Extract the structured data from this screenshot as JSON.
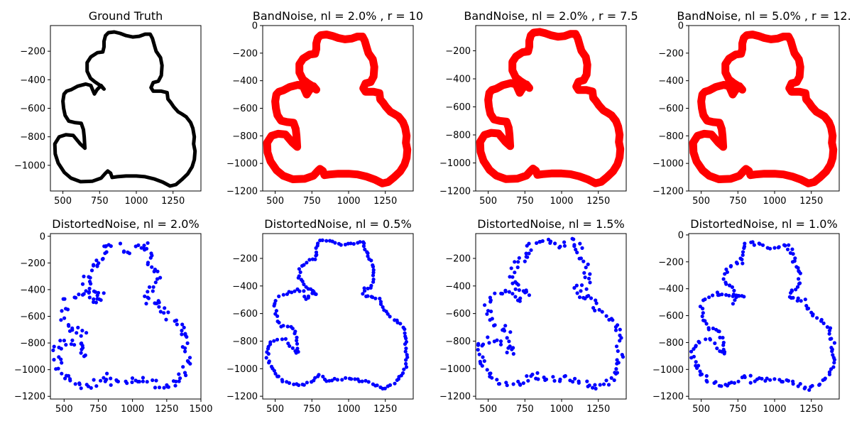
{
  "chart_data": [
    {
      "type": "scatter",
      "title": "Ground Truth",
      "style": "line",
      "color": "#000000",
      "xlim": [
        415,
        1440
      ],
      "ylim": [
        -1180,
        -20
      ],
      "xticks": [
        500,
        750,
        1000,
        1250
      ],
      "xtick_labels": [
        "500",
        "750",
        "1000",
        "1250"
      ],
      "yticks": [
        -1000,
        -800,
        -600,
        -400,
        -200
      ],
      "ytick_labels": [
        "−1000",
        "−800",
        "−600",
        "−400",
        "−200"
      ],
      "noise": 0
    },
    {
      "type": "scatter",
      "title": "BandNoise, nl = 2.0% , r = 10",
      "style": "band",
      "color": "#ff0000",
      "xlim": [
        415,
        1440
      ],
      "ylim": [
        -1200,
        0
      ],
      "xticks": [
        500,
        750,
        1000,
        1250
      ],
      "xtick_labels": [
        "500",
        "750",
        "1000",
        "1250"
      ],
      "yticks": [
        -1200,
        -1000,
        -800,
        -600,
        -400,
        -200,
        0
      ],
      "ytick_labels": [
        "−1200",
        "−1000",
        "−800",
        "−600",
        "−400",
        "−200",
        "0"
      ],
      "noise": 0
    },
    {
      "type": "scatter",
      "title": "BandNoise, nl = 2.0% , r = 7.5",
      "style": "band",
      "color": "#ff0000",
      "xlim": [
        415,
        1440
      ],
      "ylim": [
        -1200,
        -20
      ],
      "xticks": [
        500,
        750,
        1000,
        1250
      ],
      "xtick_labels": [
        "500",
        "750",
        "1000",
        "1250"
      ],
      "yticks": [
        -1200,
        -1000,
        -800,
        -600,
        -400,
        -200
      ],
      "ytick_labels": [
        "−1200",
        "−1000",
        "−800",
        "−600",
        "−400",
        "−200"
      ],
      "noise": 0
    },
    {
      "type": "scatter",
      "title": "BandNoise, nl = 5.0% , r = 12.",
      "style": "band",
      "color": "#ff0000",
      "xlim": [
        415,
        1440
      ],
      "ylim": [
        -1200,
        0
      ],
      "xticks": [
        500,
        750,
        1000,
        1250
      ],
      "xtick_labels": [
        "500",
        "750",
        "1000",
        "1250"
      ],
      "yticks": [
        -1200,
        -1000,
        -800,
        -600,
        -400,
        -200,
        0
      ],
      "ytick_labels": [
        "−1200",
        "−1000",
        "−800",
        "−600",
        "−400",
        "−200",
        "0"
      ],
      "noise": 0
    },
    {
      "type": "scatter",
      "title": "DistortedNoise, nl = 2.0%",
      "style": "dots",
      "color": "#0000ff",
      "xlim": [
        400,
        1500
      ],
      "ylim": [
        -1220,
        20
      ],
      "xticks": [
        500,
        750,
        1000,
        1250,
        1500
      ],
      "xtick_labels": [
        "500",
        "750",
        "1000",
        "1250",
        "1500"
      ],
      "yticks": [
        -1200,
        -1000,
        -800,
        -600,
        -400,
        -200,
        0
      ],
      "ytick_labels": [
        "−1200",
        "−1000",
        "−800",
        "−600",
        "−400",
        "−200",
        "0"
      ],
      "noise": 30
    },
    {
      "type": "scatter",
      "title": "DistortedNoise, nl = 0.5%",
      "style": "dots",
      "color": "#0000ff",
      "xlim": [
        415,
        1440
      ],
      "ylim": [
        -1220,
        -20
      ],
      "xticks": [
        500,
        750,
        1000,
        1250
      ],
      "xtick_labels": [
        "500",
        "750",
        "1000",
        "1250"
      ],
      "yticks": [
        -1200,
        -1000,
        -800,
        -600,
        -400,
        -200
      ],
      "ytick_labels": [
        "−1200",
        "−1000",
        "−800",
        "−600",
        "−400",
        "−200"
      ],
      "noise": 8
    },
    {
      "type": "scatter",
      "title": "DistortedNoise, nl = 1.5%",
      "style": "dots",
      "color": "#0000ff",
      "xlim": [
        415,
        1440
      ],
      "ylim": [
        -1220,
        -20
      ],
      "xticks": [
        500,
        750,
        1000,
        1250
      ],
      "xtick_labels": [
        "500",
        "750",
        "1000",
        "1250"
      ],
      "yticks": [
        -1200,
        -1000,
        -800,
        -600,
        -400,
        -200
      ],
      "ytick_labels": [
        "−1200",
        "−1000",
        "−800",
        "−600",
        "−400",
        "−200"
      ],
      "noise": 24
    },
    {
      "type": "scatter",
      "title": "DistortedNoise, nl = 1.0%",
      "style": "dots",
      "color": "#0000ff",
      "xlim": [
        415,
        1440
      ],
      "ylim": [
        -1220,
        10
      ],
      "xticks": [
        500,
        750,
        1000,
        1250
      ],
      "xtick_labels": [
        "500",
        "750",
        "1000",
        "1250"
      ],
      "yticks": [
        -1200,
        -1000,
        -800,
        -600,
        -400,
        -200,
        0
      ],
      "ytick_labels": [
        "−1200",
        "−1000",
        "−800",
        "−600",
        "−400",
        "−200",
        "0"
      ],
      "noise": 15
    }
  ],
  "shape_points": [
    [
      650,
      -880
    ],
    [
      618,
      -850
    ],
    [
      570,
      -790
    ],
    [
      520,
      -785
    ],
    [
      475,
      -800
    ],
    [
      445,
      -850
    ],
    [
      448,
      -920
    ],
    [
      468,
      -985
    ],
    [
      510,
      -1050
    ],
    [
      555,
      -1090
    ],
    [
      620,
      -1115
    ],
    [
      700,
      -1112
    ],
    [
      760,
      -1090
    ],
    [
      790,
      -1055
    ],
    [
      805,
      -1040
    ],
    [
      825,
      -1055
    ],
    [
      835,
      -1085
    ],
    [
      870,
      -1080
    ],
    [
      930,
      -1075
    ],
    [
      1000,
      -1075
    ],
    [
      1060,
      -1080
    ],
    [
      1120,
      -1095
    ],
    [
      1180,
      -1118
    ],
    [
      1230,
      -1145
    ],
    [
      1270,
      -1135
    ],
    [
      1310,
      -1100
    ],
    [
      1350,
      -1060
    ],
    [
      1380,
      -1010
    ],
    [
      1395,
      -960
    ],
    [
      1400,
      -900
    ],
    [
      1390,
      -850
    ],
    [
      1395,
      -800
    ],
    [
      1385,
      -740
    ],
    [
      1370,
      -700
    ],
    [
      1340,
      -660
    ],
    [
      1310,
      -640
    ],
    [
      1285,
      -625
    ],
    [
      1255,
      -590
    ],
    [
      1235,
      -560
    ],
    [
      1215,
      -535
    ],
    [
      1210,
      -490
    ],
    [
      1170,
      -480
    ],
    [
      1115,
      -480
    ],
    [
      1100,
      -455
    ],
    [
      1115,
      -420
    ],
    [
      1150,
      -410
    ],
    [
      1170,
      -370
    ],
    [
      1175,
      -300
    ],
    [
      1165,
      -245
    ],
    [
      1135,
      -200
    ],
    [
      1125,
      -165
    ],
    [
      1110,
      -110
    ],
    [
      1095,
      -80
    ],
    [
      1060,
      -80
    ],
    [
      1020,
      -95
    ],
    [
      975,
      -100
    ],
    [
      930,
      -90
    ],
    [
      890,
      -75
    ],
    [
      850,
      -65
    ],
    [
      810,
      -70
    ],
    [
      790,
      -90
    ],
    [
      780,
      -130
    ],
    [
      780,
      -170
    ],
    [
      772,
      -205
    ],
    [
      735,
      -210
    ],
    [
      690,
      -240
    ],
    [
      665,
      -280
    ],
    [
      665,
      -340
    ],
    [
      688,
      -390
    ],
    [
      718,
      -415
    ],
    [
      755,
      -440
    ],
    [
      780,
      -465
    ],
    [
      760,
      -440
    ],
    [
      732,
      -470
    ],
    [
      715,
      -500
    ],
    [
      702,
      -470
    ],
    [
      690,
      -440
    ],
    [
      655,
      -430
    ],
    [
      600,
      -445
    ],
    [
      555,
      -470
    ],
    [
      525,
      -480
    ],
    [
      508,
      -500
    ],
    [
      500,
      -550
    ],
    [
      505,
      -600
    ],
    [
      515,
      -650
    ],
    [
      540,
      -690
    ],
    [
      580,
      -700
    ],
    [
      625,
      -705
    ],
    [
      640,
      -750
    ],
    [
      645,
      -800
    ],
    [
      648,
      -850
    ],
    [
      650,
      -880
    ]
  ]
}
